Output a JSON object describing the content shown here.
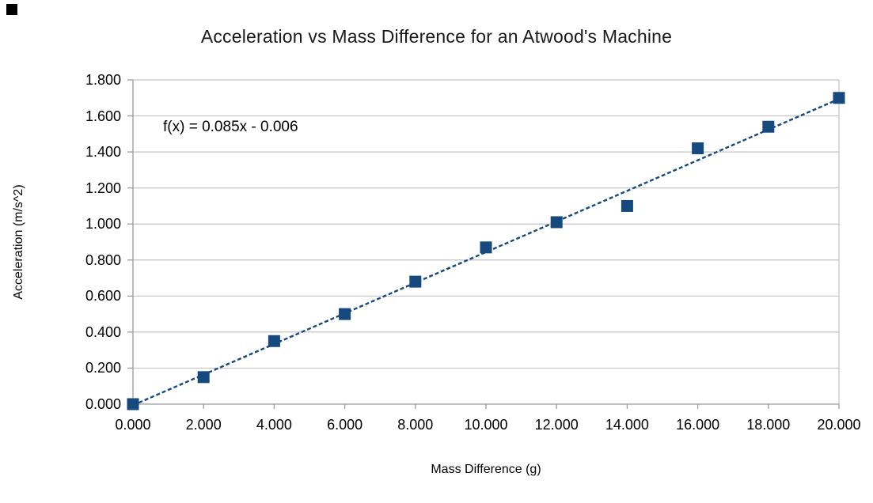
{
  "chart_data": {
    "type": "scatter",
    "title": "Acceleration vs Mass Difference for an Atwood's Machine",
    "xlabel": "Mass Difference (g)",
    "ylabel": "Acceleration (m/s^2)",
    "equation_label": "f(x) = 0.085x - 0.006",
    "x": [
      0,
      2,
      4,
      6,
      8,
      10,
      12,
      14,
      16,
      18,
      20
    ],
    "y": [
      0.0,
      0.15,
      0.35,
      0.5,
      0.68,
      0.87,
      1.01,
      1.1,
      1.42,
      1.54,
      1.7
    ],
    "trendline": {
      "slope": 0.085,
      "intercept": -0.006,
      "style": "dashed"
    },
    "xlim": [
      0,
      20
    ],
    "ylim": [
      0,
      1.8
    ],
    "x_tick_step": 2,
    "y_tick_step": 0.2,
    "x_tick_values": [
      0,
      2,
      4,
      6,
      8,
      10,
      12,
      14,
      16,
      18,
      20
    ],
    "x_tick_labels": [
      "0.000",
      "2.000",
      "4.000",
      "6.000",
      "8.000",
      "10.000",
      "12.000",
      "14.000",
      "16.000",
      "18.000",
      "20.000"
    ],
    "y_tick_values": [
      0,
      0.2,
      0.4,
      0.6,
      0.8,
      1.0,
      1.2,
      1.4,
      1.6,
      1.8
    ],
    "y_tick_labels": [
      "0.000",
      "0.200",
      "0.400",
      "0.600",
      "0.800",
      "1.000",
      "1.200",
      "1.400",
      "1.600",
      "1.800"
    ],
    "grid": "horizontal",
    "legend": "none",
    "marker": "square",
    "marker_size_px": 15,
    "colors": {
      "series": "#164a7f",
      "trendline": "#164a7f",
      "gridline": "#c3c3c3",
      "axis": "#9b9b9b",
      "text": "#000000",
      "background": "#ffffff",
      "selection_handle": "#000000"
    }
  }
}
